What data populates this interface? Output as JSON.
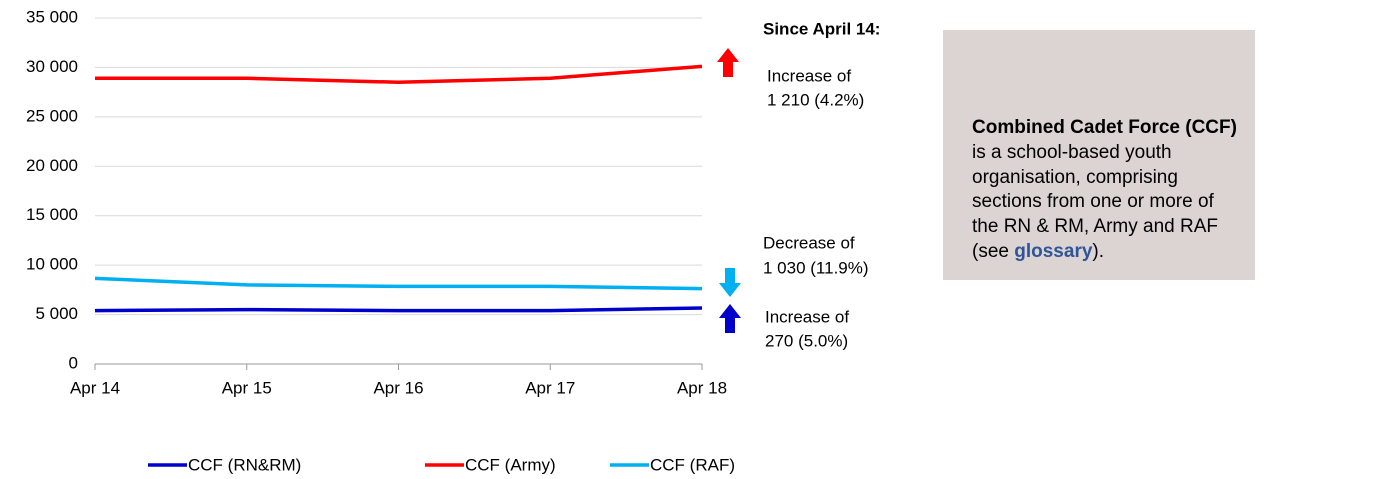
{
  "chart_data": {
    "type": "line",
    "categories": [
      "Apr 14",
      "Apr 15",
      "Apr 16",
      "Apr 17",
      "Apr 18"
    ],
    "series": [
      {
        "name": "CCF (RN&RM)",
        "color": "#0000cc",
        "values": [
          5400,
          5500,
          5400,
          5400,
          5670
        ]
      },
      {
        "name": "CCF (Army)",
        "color": "#ff0000",
        "values": [
          28900,
          28900,
          28500,
          28900,
          30110
        ]
      },
      {
        "name": "CCF (RAF)",
        "color": "#00b0f0",
        "values": [
          8660,
          8000,
          7850,
          7850,
          7630
        ]
      }
    ],
    "ylim": [
      0,
      35000
    ],
    "yticks": [
      0,
      {
        "value": 5000,
        "label": "5 000"
      },
      {
        "value": 10000,
        "label": "10 000"
      },
      {
        "value": 15000,
        "label": "15 000"
      },
      {
        "value": 20000,
        "label": "20 000"
      },
      {
        "value": 25000,
        "label": "25 000"
      },
      {
        "value": 30000,
        "label": "30 000"
      },
      {
        "value": 35000,
        "label": "35 000"
      }
    ],
    "grid": true,
    "legend": "bottom",
    "annotations": [
      "Since April 14:",
      "Increase of",
      "1 210 (4.2%)",
      "Decrease of",
      "1 030 (11.9%)",
      "Increase of",
      "270 (5.0%)"
    ]
  },
  "info_box": {
    "title": "Combined Cadet Force (CCF)",
    "lines": [
      "is a school-based youth",
      "organisation, comprising",
      "sections from one or more of",
      "the RN & RM, Army and RAF"
    ],
    "last_line": [
      "(see ",
      "glossary",
      ")."
    ]
  }
}
